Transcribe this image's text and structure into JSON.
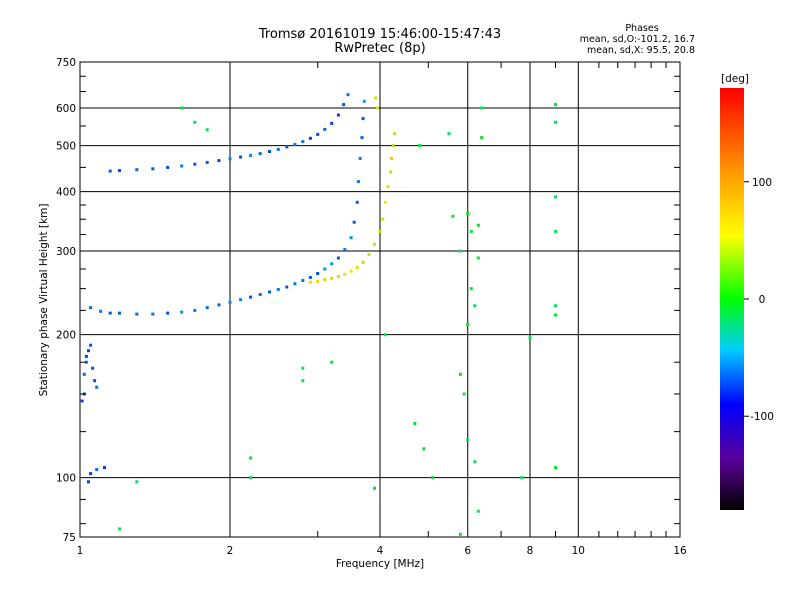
{
  "chart_data": {
    "type": "scatter",
    "title": "Tromsø 20161019 15:46:00-15:47:43",
    "subtitle": "RwPretec (8p)",
    "xlabel": "Frequency [MHz]",
    "ylabel": "Stationary phase Virtual Height [km]",
    "xscale": "log",
    "yscale": "log",
    "xlim": [
      1,
      16
    ],
    "ylim": [
      75,
      750
    ],
    "xticks": [
      1,
      2,
      4,
      6,
      8,
      10,
      16
    ],
    "xtick_labels": [
      "1",
      "2",
      "4",
      "6",
      "8",
      "10",
      "16"
    ],
    "yticks": [
      75,
      100,
      200,
      300,
      400,
      500,
      600,
      750
    ],
    "ytick_labels": [
      "75",
      "100",
      "200",
      "300",
      "400",
      "500",
      "600",
      "750"
    ],
    "grid": true,
    "stats": {
      "heading": "Phases",
      "line_o": "mean, sd,O:-101.2, 16.7",
      "line_x": "mean, sd,X:  95.5, 20.8"
    },
    "colorbar": {
      "label": "[deg]",
      "range": [
        -180,
        180
      ],
      "ticks": [
        100,
        0,
        -100
      ],
      "tick_labels": [
        "100",
        "0",
        "-100"
      ]
    },
    "series": [
      {
        "name": "o-trace-F1",
        "phase": -100,
        "points": [
          [
            1.05,
            228
          ],
          [
            1.1,
            224
          ],
          [
            1.15,
            222
          ],
          [
            1.2,
            222
          ],
          [
            1.3,
            221
          ],
          [
            1.4,
            221
          ],
          [
            1.5,
            222
          ],
          [
            1.6,
            223
          ],
          [
            1.7,
            225
          ],
          [
            1.8,
            228
          ],
          [
            1.9,
            231
          ],
          [
            2.0,
            234
          ],
          [
            2.1,
            237
          ],
          [
            2.2,
            240
          ],
          [
            2.3,
            243
          ],
          [
            2.4,
            246
          ],
          [
            2.5,
            249
          ],
          [
            2.6,
            252
          ],
          [
            2.7,
            256
          ],
          [
            2.8,
            260
          ],
          [
            2.9,
            264
          ],
          [
            3.0,
            269
          ],
          [
            3.1,
            275
          ],
          [
            3.2,
            282
          ],
          [
            3.3,
            290
          ],
          [
            3.4,
            302
          ],
          [
            3.5,
            320
          ],
          [
            3.55,
            345
          ],
          [
            3.6,
            380
          ],
          [
            3.62,
            420
          ],
          [
            3.65,
            470
          ],
          [
            3.68,
            520
          ],
          [
            3.7,
            570
          ],
          [
            3.72,
            620
          ]
        ]
      },
      {
        "name": "o-trace-F2",
        "phase": -105,
        "points": [
          [
            1.15,
            442
          ],
          [
            1.2,
            443
          ],
          [
            1.3,
            445
          ],
          [
            1.4,
            447
          ],
          [
            1.5,
            450
          ],
          [
            1.6,
            453
          ],
          [
            1.7,
            457
          ],
          [
            1.8,
            461
          ],
          [
            1.9,
            465
          ],
          [
            2.0,
            469
          ],
          [
            2.1,
            473
          ],
          [
            2.2,
            477
          ],
          [
            2.3,
            481
          ],
          [
            2.4,
            486
          ],
          [
            2.5,
            491
          ],
          [
            2.6,
            497
          ],
          [
            2.7,
            503
          ],
          [
            2.8,
            510
          ],
          [
            2.9,
            518
          ],
          [
            3.0,
            528
          ],
          [
            3.1,
            541
          ],
          [
            3.2,
            557
          ],
          [
            3.3,
            580
          ],
          [
            3.38,
            610
          ],
          [
            3.45,
            640
          ]
        ]
      },
      {
        "name": "o-trace-low",
        "phase": -110,
        "points": [
          [
            1.02,
            165
          ],
          [
            1.03,
            175
          ],
          [
            1.04,
            185
          ],
          [
            1.05,
            190
          ],
          [
            1.06,
            170
          ],
          [
            1.07,
            160
          ],
          [
            1.08,
            155
          ],
          [
            1.02,
            150
          ],
          [
            1.01,
            145
          ],
          [
            1.03,
            180
          ],
          [
            1.05,
            102
          ],
          [
            1.08,
            104
          ],
          [
            1.12,
            105
          ],
          [
            1.04,
            98
          ]
        ]
      },
      {
        "name": "x-trace",
        "phase": 95,
        "points": [
          [
            2.9,
            258
          ],
          [
            3.0,
            259
          ],
          [
            3.1,
            261
          ],
          [
            3.2,
            263
          ],
          [
            3.3,
            265
          ],
          [
            3.4,
            268
          ],
          [
            3.5,
            272
          ],
          [
            3.6,
            277
          ],
          [
            3.7,
            284
          ],
          [
            3.8,
            295
          ],
          [
            3.9,
            310
          ],
          [
            4.0,
            330
          ],
          [
            4.05,
            350
          ],
          [
            4.1,
            380
          ],
          [
            4.15,
            410
          ],
          [
            4.2,
            440
          ],
          [
            4.22,
            470
          ],
          [
            4.25,
            500
          ],
          [
            4.28,
            530
          ],
          [
            3.95,
            600
          ],
          [
            3.92,
            630
          ]
        ]
      },
      {
        "name": "scatter-noise",
        "phase": 0,
        "points": [
          [
            5.8,
            300
          ],
          [
            6.0,
            360
          ],
          [
            6.1,
            330
          ],
          [
            6.3,
            340
          ],
          [
            6.3,
            290
          ],
          [
            6.1,
            250
          ],
          [
            6.2,
            230
          ],
          [
            6.0,
            210
          ],
          [
            5.8,
            165
          ],
          [
            5.9,
            150
          ],
          [
            6.0,
            120
          ],
          [
            6.2,
            108
          ],
          [
            4.7,
            130
          ],
          [
            4.9,
            115
          ],
          [
            5.1,
            100
          ],
          [
            6.4,
            520
          ],
          [
            6.4,
            600
          ],
          [
            9.0,
            610
          ],
          [
            9.0,
            560
          ],
          [
            9.0,
            390
          ],
          [
            9.0,
            330
          ],
          [
            9.0,
            230
          ],
          [
            9.0,
            220
          ],
          [
            9.0,
            105
          ],
          [
            2.2,
            110
          ],
          [
            2.2,
            100
          ],
          [
            2.8,
            170
          ],
          [
            2.8,
            160
          ],
          [
            4.1,
            200
          ],
          [
            3.2,
            175
          ],
          [
            1.3,
            98
          ],
          [
            1.6,
            600
          ],
          [
            1.7,
            560
          ],
          [
            1.8,
            540
          ],
          [
            3.9,
            95
          ],
          [
            1.2,
            78
          ],
          [
            6.3,
            85
          ],
          [
            7.7,
            100
          ],
          [
            5.8,
            76
          ],
          [
            8.0,
            197
          ],
          [
            5.6,
            355
          ],
          [
            5.5,
            530
          ],
          [
            4.8,
            500
          ]
        ]
      }
    ]
  }
}
